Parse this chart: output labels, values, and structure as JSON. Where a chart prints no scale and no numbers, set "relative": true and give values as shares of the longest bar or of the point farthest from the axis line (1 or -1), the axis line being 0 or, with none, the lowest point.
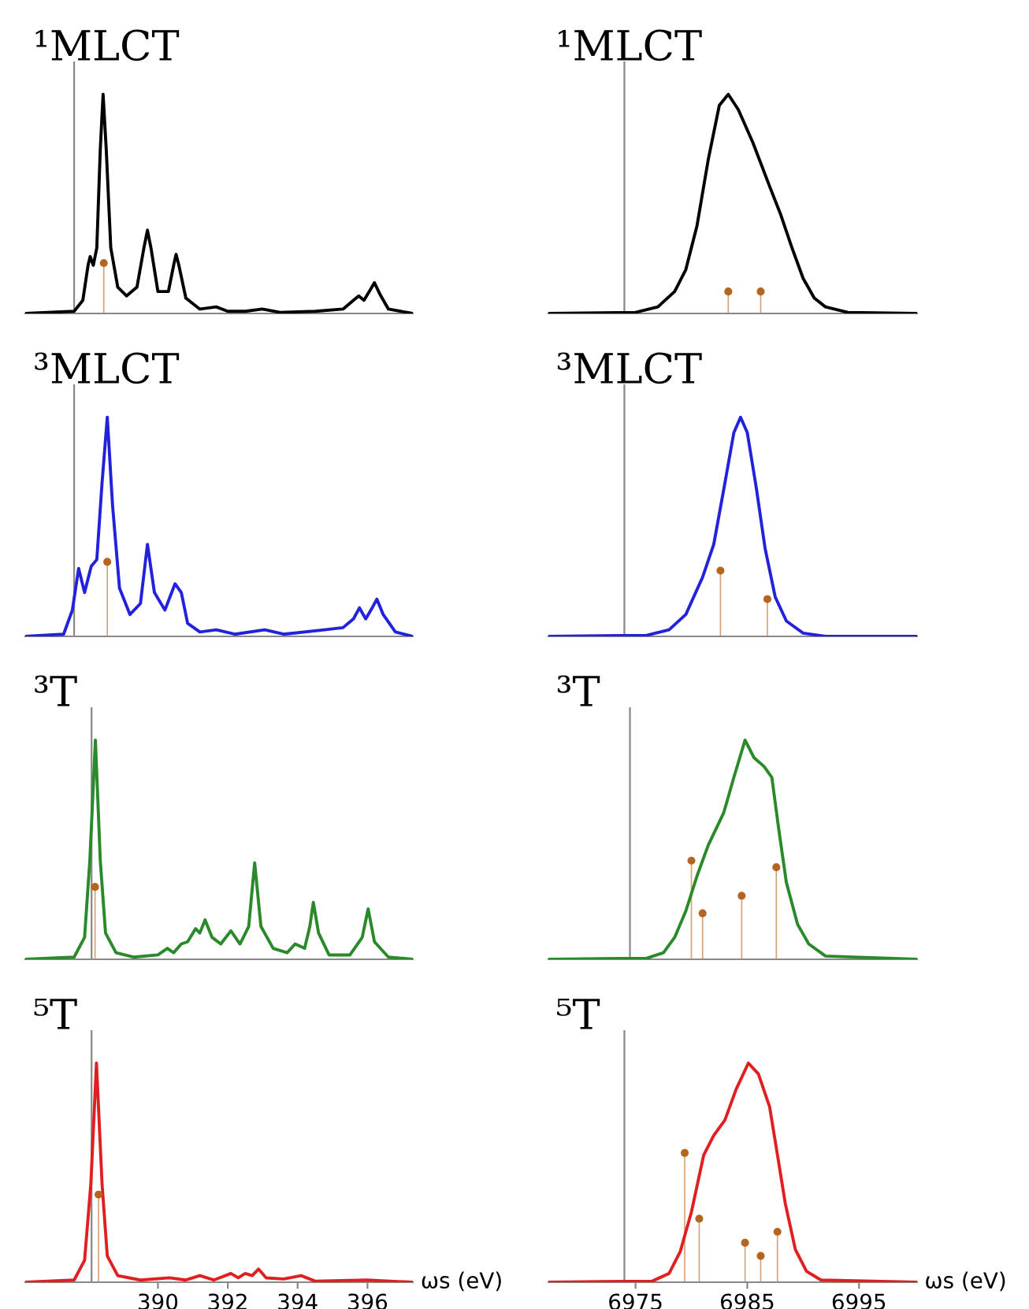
{
  "chart_data": [
    {
      "type": "line",
      "title": "¹MLCT",
      "relative": true,
      "xlim": [
        386.2,
        397.3
      ],
      "tick_labels": false,
      "ref_lines": [
        {
          "axis": "x",
          "value": 387.6,
          "color": "#888888"
        }
      ],
      "series": [
        {
          "type": "line",
          "color": "#000000",
          "x": [
            386.2,
            387.6,
            387.85,
            388.0,
            388.06,
            388.15,
            388.25,
            388.35,
            388.43,
            388.52,
            388.65,
            388.85,
            389.1,
            389.4,
            389.6,
            389.7,
            389.8,
            390.0,
            390.3,
            390.45,
            390.52,
            390.6,
            390.8,
            391.2,
            391.67,
            392.0,
            392.5,
            392.99,
            393.5,
            394.5,
            395.3,
            395.6,
            395.75,
            395.9,
            396.05,
            396.2,
            396.35,
            396.6,
            397.3
          ],
          "values": [
            0,
            0.01,
            0.06,
            0.22,
            0.26,
            0.22,
            0.3,
            0.75,
            1.0,
            0.75,
            0.3,
            0.12,
            0.08,
            0.12,
            0.3,
            0.38,
            0.3,
            0.1,
            0.1,
            0.22,
            0.27,
            0.22,
            0.07,
            0.02,
            0.03,
            0.01,
            0.01,
            0.02,
            0.005,
            0.01,
            0.02,
            0.06,
            0.08,
            0.06,
            0.1,
            0.14,
            0.09,
            0.02,
            0
          ]
        },
        {
          "type": "lollipop",
          "color": "#b5651d",
          "marker": "circle",
          "x": [
            388.45
          ],
          "values": [
            0.23
          ]
        }
      ]
    },
    {
      "type": "line",
      "title": "¹MLCT",
      "relative": true,
      "xlim": [
        6967.2,
        7000.2
      ],
      "tick_labels": false,
      "ref_lines": [
        {
          "axis": "x",
          "value": 6974.0,
          "color": "#888888"
        }
      ],
      "series": [
        {
          "type": "line",
          "color": "#000000",
          "x": [
            6967.2,
            6975,
            6977,
            6978.5,
            6979.5,
            6980.5,
            6981.5,
            6982.5,
            6983.3,
            6984.2,
            6985.5,
            6987,
            6988,
            6989,
            6990,
            6991,
            6992,
            6994,
            7000.2
          ],
          "values": [
            0,
            0.005,
            0.03,
            0.1,
            0.2,
            0.4,
            0.7,
            0.95,
            1.0,
            0.93,
            0.78,
            0.58,
            0.45,
            0.3,
            0.16,
            0.07,
            0.03,
            0.005,
            0
          ]
        },
        {
          "type": "lollipop",
          "color": "#b5651d",
          "marker": "circle",
          "x": [
            6983.3,
            6986.2
          ],
          "values": [
            0.1,
            0.1
          ]
        }
      ]
    },
    {
      "type": "line",
      "title": "³MLCT",
      "relative": true,
      "xlim": [
        386.2,
        397.3
      ],
      "tick_labels": false,
      "ref_lines": [
        {
          "axis": "x",
          "value": 387.6,
          "color": "#888888"
        }
      ],
      "series": [
        {
          "type": "line",
          "color": "#2222dd",
          "x": [
            386.2,
            387.3,
            387.55,
            387.73,
            387.9,
            388.09,
            388.25,
            388.4,
            388.55,
            388.7,
            388.9,
            389.2,
            389.5,
            389.7,
            389.9,
            390.2,
            390.49,
            390.67,
            390.85,
            391.2,
            391.67,
            392.2,
            393.06,
            393.6,
            394.77,
            395.3,
            395.6,
            395.77,
            395.95,
            396.1,
            396.27,
            396.45,
            396.8,
            397.3
          ],
          "values": [
            0,
            0.01,
            0.12,
            0.31,
            0.2,
            0.32,
            0.35,
            0.7,
            1.0,
            0.6,
            0.22,
            0.1,
            0.15,
            0.42,
            0.2,
            0.12,
            0.24,
            0.2,
            0.06,
            0.02,
            0.03,
            0.01,
            0.03,
            0.01,
            0.03,
            0.04,
            0.08,
            0.13,
            0.08,
            0.12,
            0.17,
            0.1,
            0.02,
            0
          ]
        },
        {
          "type": "lollipop",
          "color": "#b5651d",
          "marker": "circle",
          "x": [
            388.55
          ],
          "values": [
            0.34
          ]
        }
      ]
    },
    {
      "type": "line",
      "title": "³MLCT",
      "relative": true,
      "xlim": [
        6967.2,
        7000.2
      ],
      "tick_labels": false,
      "ref_lines": [
        {
          "axis": "x",
          "value": 6974.0,
          "color": "#888888"
        }
      ],
      "series": [
        {
          "type": "line",
          "color": "#2222dd",
          "x": [
            6967.2,
            6976,
            6978,
            6979.5,
            6981,
            6982,
            6983,
            6983.8,
            6984.4,
            6985,
            6985.8,
            6986.6,
            6987.5,
            6988.5,
            6990,
            6992,
            7000.2
          ],
          "values": [
            0,
            0.005,
            0.03,
            0.1,
            0.27,
            0.42,
            0.7,
            0.93,
            1.0,
            0.93,
            0.68,
            0.4,
            0.18,
            0.07,
            0.015,
            0,
            0
          ]
        },
        {
          "type": "lollipop",
          "color": "#b5651d",
          "marker": "circle",
          "x": [
            6982.6,
            6986.8
          ],
          "values": [
            0.3,
            0.17
          ]
        }
      ]
    },
    {
      "type": "line",
      "title": "³T",
      "relative": true,
      "xlim": [
        386.2,
        397.3
      ],
      "tick_labels": false,
      "ref_lines": [
        {
          "axis": "x",
          "value": 388.1,
          "color": "#888888"
        }
      ],
      "series": [
        {
          "type": "line",
          "color": "#2a8a2a",
          "x": [
            386.2,
            387.6,
            387.9,
            388.05,
            388.21,
            388.35,
            388.5,
            388.8,
            389.3,
            390.0,
            390.27,
            390.45,
            390.67,
            390.85,
            391.08,
            391.2,
            391.35,
            391.55,
            391.8,
            392.09,
            392.35,
            392.6,
            392.77,
            392.95,
            393.3,
            393.7,
            393.93,
            394.2,
            394.35,
            394.45,
            394.6,
            394.9,
            395.5,
            395.85,
            396.02,
            396.2,
            396.6,
            397.3
          ],
          "values": [
            0,
            0.01,
            0.1,
            0.45,
            1.0,
            0.45,
            0.12,
            0.03,
            0.01,
            0.02,
            0.05,
            0.03,
            0.07,
            0.08,
            0.14,
            0.12,
            0.18,
            0.1,
            0.07,
            0.13,
            0.07,
            0.15,
            0.44,
            0.15,
            0.05,
            0.03,
            0.07,
            0.05,
            0.15,
            0.26,
            0.12,
            0.02,
            0.02,
            0.1,
            0.23,
            0.08,
            0.01,
            0
          ]
        },
        {
          "type": "lollipop",
          "color": "#b5651d",
          "marker": "circle",
          "x": [
            388.2
          ],
          "values": [
            0.33
          ]
        }
      ]
    },
    {
      "type": "line",
      "title": "³T",
      "relative": true,
      "xlim": [
        6967.2,
        7000.2
      ],
      "tick_labels": false,
      "ref_lines": [
        {
          "axis": "x",
          "value": 6974.5,
          "color": "#888888"
        }
      ],
      "series": [
        {
          "type": "line",
          "color": "#2a8a2a",
          "x": [
            6967.2,
            6976,
            6977.5,
            6978.5,
            6979.5,
            6980.5,
            6981.5,
            6982.9,
            6983.8,
            6984.8,
            6985.6,
            6986.5,
            6987.2,
            6987.8,
            6988.5,
            6989.5,
            6990.5,
            6992,
            7000.2
          ],
          "values": [
            0,
            0.005,
            0.03,
            0.1,
            0.22,
            0.38,
            0.52,
            0.67,
            0.83,
            1.0,
            0.92,
            0.88,
            0.83,
            0.6,
            0.35,
            0.16,
            0.07,
            0.015,
            0
          ]
        },
        {
          "type": "lollipop",
          "color": "#b5651d",
          "marker": "circle",
          "x": [
            6980.0,
            6981.0,
            6984.5,
            6987.6
          ],
          "values": [
            0.45,
            0.21,
            0.29,
            0.42
          ]
        }
      ]
    },
    {
      "type": "line",
      "title": "⁵T",
      "relative": true,
      "xlim": [
        386.2,
        397.3
      ],
      "xticks": [
        390,
        392,
        394,
        396
      ],
      "xlabel": "ωs (eV)",
      "tick_labels": "x",
      "ref_lines": [
        {
          "axis": "x",
          "value": 388.1,
          "color": "#888888"
        }
      ],
      "series": [
        {
          "type": "line",
          "color": "#e02020",
          "x": [
            386.2,
            387.6,
            387.9,
            388.08,
            388.24,
            388.4,
            388.55,
            388.85,
            389.5,
            390.33,
            390.8,
            391.2,
            391.6,
            392.09,
            392.3,
            392.5,
            392.7,
            392.88,
            393.1,
            393.6,
            394.1,
            394.5,
            395.98,
            397.3
          ],
          "values": [
            0,
            0.01,
            0.1,
            0.45,
            1.0,
            0.45,
            0.12,
            0.03,
            0.01,
            0.02,
            0.01,
            0.03,
            0.01,
            0.04,
            0.02,
            0.04,
            0.03,
            0.06,
            0.02,
            0.015,
            0.03,
            0.005,
            0.01,
            0
          ]
        },
        {
          "type": "lollipop",
          "color": "#b5651d",
          "marker": "circle",
          "x": [
            388.3
          ],
          "values": [
            0.4
          ]
        }
      ]
    },
    {
      "type": "line",
      "title": "⁵T",
      "relative": true,
      "xlim": [
        6967.2,
        7000.2
      ],
      "xticks": [
        6975,
        6985,
        6995
      ],
      "xlabel": "ωs (eV)",
      "tick_labels": "x",
      "ref_lines": [
        {
          "axis": "x",
          "value": 6974.0,
          "color": "#888888"
        }
      ],
      "series": [
        {
          "type": "line",
          "color": "#e02020",
          "x": [
            6967.2,
            6976.5,
            6978,
            6979,
            6980,
            6981.1,
            6982,
            6983,
            6984,
            6985.1,
            6986,
            6987,
            6987.8,
            6988.4,
            6989.3,
            6990.3,
            6991.6,
            7000.2
          ],
          "values": [
            0,
            0.005,
            0.04,
            0.14,
            0.32,
            0.58,
            0.67,
            0.74,
            0.88,
            1.0,
            0.95,
            0.8,
            0.55,
            0.36,
            0.15,
            0.05,
            0.01,
            0
          ]
        },
        {
          "type": "lollipop",
          "color": "#b5651d",
          "marker": "circle",
          "x": [
            6979.4,
            6980.7,
            6984.8,
            6986.2,
            6987.7
          ],
          "values": [
            0.59,
            0.29,
            0.18,
            0.12,
            0.23
          ]
        }
      ]
    }
  ]
}
